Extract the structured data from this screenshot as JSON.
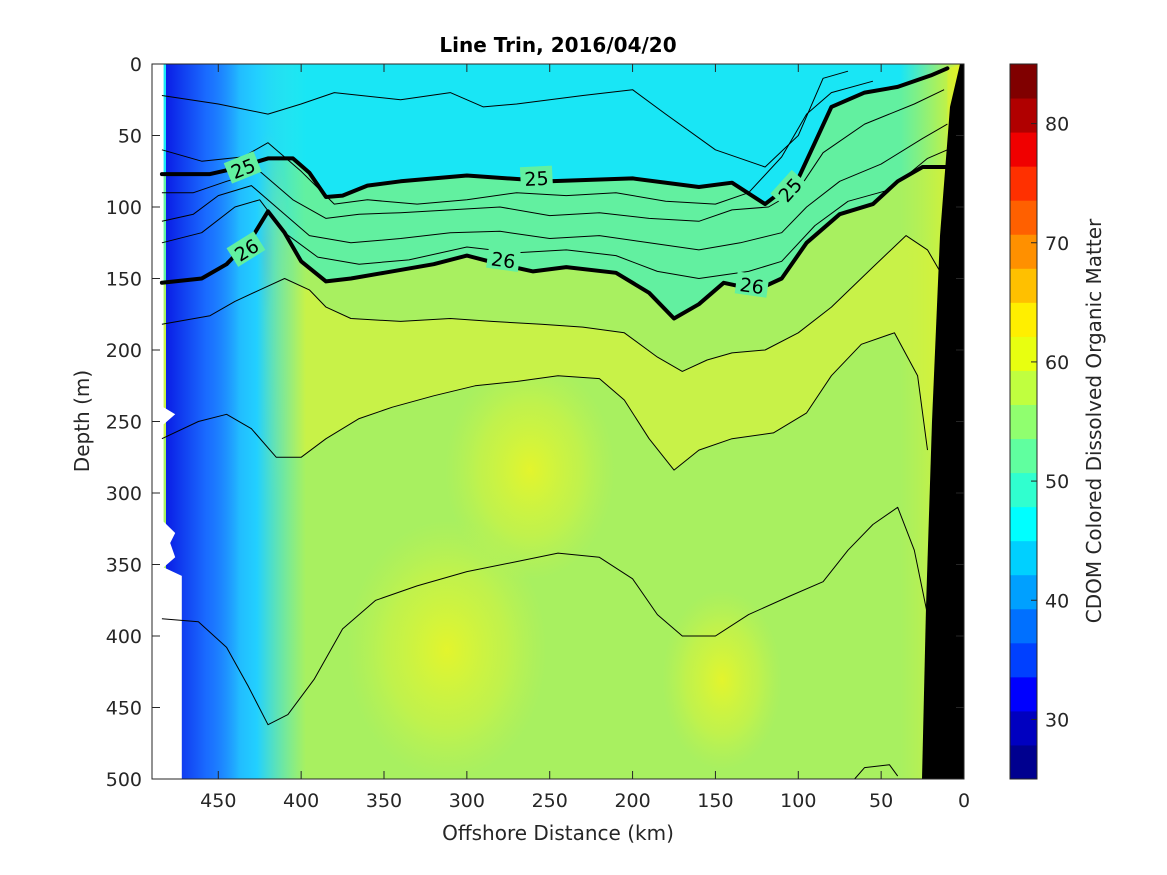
{
  "chart_data": {
    "type": "heatmap",
    "title": "Line Trin, 2016/04/20",
    "xlabel": "Offshore Distance (km)",
    "ylabel": "Depth (m)",
    "colorbar_label": "CDOM Colored Dissolved Organic Matter",
    "xlim": [
      490,
      0
    ],
    "ylim": [
      0,
      500
    ],
    "x_ticks": [
      "450",
      "400",
      "350",
      "300",
      "250",
      "200",
      "150",
      "100",
      "50",
      "0"
    ],
    "x_tick_values": [
      450,
      400,
      350,
      300,
      250,
      200,
      150,
      100,
      50,
      0
    ],
    "y_ticks": [
      "0",
      "50",
      "100",
      "150",
      "200",
      "250",
      "300",
      "350",
      "400",
      "450",
      "500"
    ],
    "y_tick_values": [
      0,
      50,
      100,
      150,
      200,
      250,
      300,
      350,
      400,
      450,
      500
    ],
    "colorbar_range": [
      25,
      85
    ],
    "colorbar_ticks": [
      "30",
      "40",
      "50",
      "60",
      "70",
      "80"
    ],
    "colorbar_tick_values": [
      30,
      40,
      50,
      60,
      70,
      80
    ],
    "colorbar_colors": [
      "#00008f",
      "#0000c0",
      "#0000ff",
      "#0040ff",
      "#0070ff",
      "#00a0ff",
      "#00d0ff",
      "#00ffff",
      "#30ffcf",
      "#60ff9f",
      "#90ff6f",
      "#c0ff3f",
      "#e8ff10",
      "#ffef00",
      "#ffc000",
      "#ff9000",
      "#ff6000",
      "#ff3000",
      "#f00000",
      "#b00000",
      "#800000"
    ],
    "field_colors": {
      "deep_blue": "#0a1ee6",
      "blue": "#1a6cff",
      "light_blue": "#20b8ff",
      "cyan": "#19e6f5",
      "teal": "#3df0c8",
      "mint": "#62f0a0",
      "green": "#a8f060",
      "yellow_green": "#c8f248",
      "yellow": "#e4f530",
      "orange": "#ffb020",
      "black": "#000000"
    },
    "isopycnals_bold": [
      {
        "label": "25",
        "points": [
          [
            484,
            77
          ],
          [
            455,
            77
          ],
          [
            440,
            73
          ],
          [
            420,
            66
          ],
          [
            405,
            66
          ],
          [
            395,
            76
          ],
          [
            385,
            93
          ],
          [
            375,
            92
          ],
          [
            360,
            85
          ],
          [
            340,
            82
          ],
          [
            300,
            78
          ],
          [
            250,
            82
          ],
          [
            200,
            80
          ],
          [
            160,
            86
          ],
          [
            140,
            83
          ],
          [
            120,
            98
          ],
          [
            100,
            80
          ],
          [
            90,
            55
          ],
          [
            80,
            30
          ],
          [
            60,
            20
          ],
          [
            40,
            16
          ],
          [
            20,
            8
          ],
          [
            10,
            3
          ]
        ]
      },
      {
        "label": "26",
        "points": [
          [
            484,
            153
          ],
          [
            460,
            150
          ],
          [
            445,
            140
          ],
          [
            430,
            122
          ],
          [
            420,
            103
          ],
          [
            410,
            118
          ],
          [
            400,
            138
          ],
          [
            385,
            152
          ],
          [
            370,
            150
          ],
          [
            350,
            146
          ],
          [
            320,
            140
          ],
          [
            300,
            134
          ],
          [
            280,
            140
          ],
          [
            260,
            145
          ],
          [
            240,
            142
          ],
          [
            210,
            146
          ],
          [
            190,
            160
          ],
          [
            175,
            178
          ],
          [
            160,
            168
          ],
          [
            145,
            153
          ],
          [
            125,
            158
          ],
          [
            110,
            150
          ],
          [
            95,
            125
          ],
          [
            75,
            105
          ],
          [
            55,
            98
          ],
          [
            40,
            82
          ],
          [
            25,
            72
          ],
          [
            10,
            72
          ]
        ]
      }
    ],
    "isopycnals_thin": [
      {
        "points": [
          [
            484,
            22
          ],
          [
            450,
            28
          ],
          [
            420,
            35
          ],
          [
            400,
            28
          ],
          [
            380,
            20
          ],
          [
            340,
            25
          ],
          [
            310,
            20
          ],
          [
            290,
            30
          ],
          [
            270,
            28
          ],
          [
            230,
            22
          ],
          [
            200,
            18
          ],
          [
            180,
            35
          ],
          [
            150,
            60
          ],
          [
            120,
            72
          ],
          [
            100,
            50
          ],
          [
            85,
            10
          ],
          [
            70,
            5
          ]
        ]
      },
      {
        "points": [
          [
            484,
            60
          ],
          [
            460,
            68
          ],
          [
            435,
            65
          ],
          [
            420,
            55
          ],
          [
            400,
            75
          ],
          [
            380,
            98
          ],
          [
            360,
            95
          ],
          [
            330,
            98
          ],
          [
            300,
            95
          ],
          [
            270,
            90
          ],
          [
            240,
            92
          ],
          [
            210,
            90
          ],
          [
            180,
            96
          ],
          [
            150,
            98
          ],
          [
            130,
            90
          ],
          [
            110,
            65
          ],
          [
            95,
            35
          ],
          [
            80,
            20
          ],
          [
            55,
            12
          ]
        ]
      },
      {
        "points": [
          [
            484,
            90
          ],
          [
            465,
            90
          ],
          [
            445,
            82
          ],
          [
            425,
            75
          ],
          [
            405,
            95
          ],
          [
            385,
            108
          ],
          [
            365,
            105
          ],
          [
            340,
            104
          ],
          [
            310,
            102
          ],
          [
            280,
            100
          ],
          [
            250,
            106
          ],
          [
            220,
            104
          ],
          [
            190,
            108
          ],
          [
            160,
            110
          ],
          [
            140,
            102
          ],
          [
            118,
            100
          ],
          [
            100,
            88
          ],
          [
            85,
            62
          ],
          [
            60,
            42
          ],
          [
            30,
            28
          ],
          [
            12,
            18
          ]
        ]
      },
      {
        "points": [
          [
            484,
            110
          ],
          [
            465,
            105
          ],
          [
            450,
            92
          ],
          [
            430,
            85
          ],
          [
            410,
            105
          ],
          [
            395,
            120
          ],
          [
            370,
            125
          ],
          [
            340,
            122
          ],
          [
            310,
            118
          ],
          [
            280,
            117
          ],
          [
            250,
            122
          ],
          [
            220,
            120
          ],
          [
            190,
            125
          ],
          [
            160,
            130
          ],
          [
            135,
            125
          ],
          [
            110,
            118
          ],
          [
            95,
            100
          ],
          [
            75,
            82
          ],
          [
            50,
            70
          ],
          [
            25,
            52
          ],
          [
            10,
            42
          ]
        ]
      },
      {
        "points": [
          [
            484,
            125
          ],
          [
            460,
            118
          ],
          [
            440,
            100
          ],
          [
            425,
            95
          ],
          [
            410,
            118
          ],
          [
            390,
            135
          ],
          [
            365,
            140
          ],
          [
            335,
            137
          ],
          [
            300,
            128
          ],
          [
            270,
            132
          ],
          [
            240,
            130
          ],
          [
            210,
            134
          ],
          [
            185,
            145
          ],
          [
            160,
            150
          ],
          [
            130,
            145
          ],
          [
            110,
            138
          ],
          [
            90,
            113
          ],
          [
            70,
            96
          ],
          [
            45,
            88
          ],
          [
            22,
            66
          ],
          [
            10,
            60
          ]
        ]
      },
      {
        "points": [
          [
            484,
            182
          ],
          [
            455,
            176
          ],
          [
            440,
            166
          ],
          [
            425,
            158
          ],
          [
            410,
            150
          ],
          [
            395,
            158
          ],
          [
            385,
            170
          ],
          [
            370,
            178
          ],
          [
            340,
            180
          ],
          [
            310,
            178
          ],
          [
            285,
            180
          ],
          [
            255,
            182
          ],
          [
            230,
            184
          ],
          [
            205,
            188
          ],
          [
            185,
            205
          ],
          [
            170,
            215
          ],
          [
            155,
            207
          ],
          [
            140,
            202
          ],
          [
            120,
            200
          ],
          [
            100,
            188
          ],
          [
            80,
            170
          ],
          [
            55,
            142
          ],
          [
            35,
            120
          ],
          [
            22,
            130
          ],
          [
            12,
            150
          ]
        ]
      },
      {
        "points": [
          [
            484,
            262
          ],
          [
            462,
            250
          ],
          [
            445,
            245
          ],
          [
            430,
            255
          ],
          [
            415,
            275
          ],
          [
            400,
            275
          ],
          [
            385,
            262
          ],
          [
            365,
            248
          ],
          [
            345,
            240
          ],
          [
            320,
            232
          ],
          [
            295,
            225
          ],
          [
            270,
            222
          ],
          [
            245,
            218
          ],
          [
            220,
            220
          ],
          [
            205,
            235
          ],
          [
            190,
            262
          ],
          [
            175,
            284
          ],
          [
            160,
            270
          ],
          [
            140,
            262
          ],
          [
            115,
            258
          ],
          [
            95,
            244
          ],
          [
            80,
            218
          ],
          [
            62,
            196
          ],
          [
            42,
            188
          ],
          [
            28,
            218
          ],
          [
            22,
            270
          ]
        ]
      },
      {
        "points": [
          [
            484,
            388
          ],
          [
            462,
            390
          ],
          [
            445,
            408
          ],
          [
            432,
            435
          ],
          [
            420,
            462
          ],
          [
            408,
            455
          ],
          [
            392,
            430
          ],
          [
            375,
            395
          ],
          [
            355,
            375
          ],
          [
            330,
            365
          ],
          [
            300,
            355
          ],
          [
            270,
            348
          ],
          [
            245,
            342
          ],
          [
            220,
            345
          ],
          [
            200,
            360
          ],
          [
            185,
            385
          ],
          [
            170,
            400
          ],
          [
            150,
            400
          ],
          [
            130,
            385
          ],
          [
            105,
            372
          ],
          [
            85,
            362
          ],
          [
            70,
            340
          ],
          [
            55,
            322
          ],
          [
            40,
            310
          ],
          [
            30,
            340
          ],
          [
            22,
            385
          ]
        ]
      },
      {
        "points": [
          [
            66,
            500
          ],
          [
            60,
            492
          ],
          [
            45,
            490
          ],
          [
            40,
            498
          ]
        ]
      }
    ],
    "contour_labels": [
      {
        "text": "25",
        "x": 435,
        "y": 73,
        "angle": -22
      },
      {
        "text": "25",
        "x": 258,
        "y": 80,
        "angle": -3
      },
      {
        "text": "25",
        "x": 105,
        "y": 88,
        "angle": -48
      },
      {
        "text": "26",
        "x": 433,
        "y": 130,
        "angle": -32
      },
      {
        "text": "26",
        "x": 278,
        "y": 137,
        "angle": 8
      },
      {
        "text": "26",
        "x": 128,
        "y": 155,
        "angle": 8
      }
    ]
  }
}
